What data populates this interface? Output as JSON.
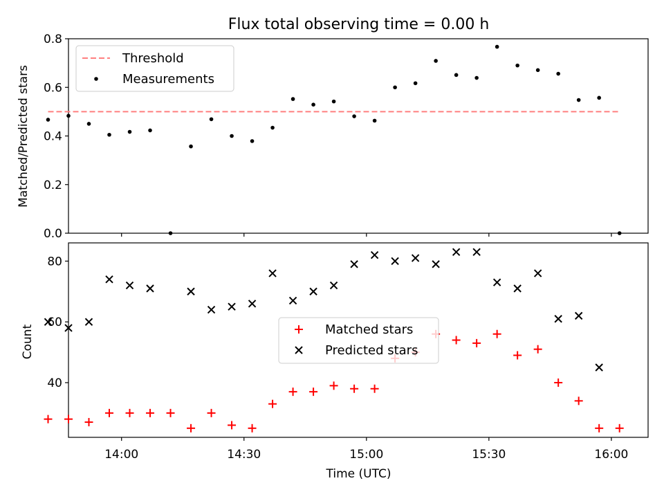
{
  "title": "Flux total observing time = 0.00 h",
  "chart_data": [
    {
      "type": "scatter",
      "ylabel": "Matched/Predicted stars",
      "xlabel": "",
      "ylim": [
        0,
        0.8
      ],
      "xlim": [
        "13:47",
        "16:09"
      ],
      "yticks": [
        "0.0",
        "0.2",
        "0.4",
        "0.6",
        "0.8"
      ],
      "grid": false,
      "legend_position": "upper-left",
      "threshold": {
        "name": "Threshold",
        "value": 0.5,
        "x_start": "13:42",
        "x_end": "16:02",
        "color": "#ff7f7f"
      },
      "series": [
        {
          "name": "Measurements",
          "color": "#000000",
          "x": [
            "13:42",
            "13:47",
            "13:52",
            "13:57",
            "14:02",
            "14:07",
            "14:12",
            "14:17",
            "14:22",
            "14:27",
            "14:32",
            "14:37",
            "14:42",
            "14:47",
            "14:52",
            "14:57",
            "15:02",
            "15:07",
            "15:12",
            "15:17",
            "15:22",
            "15:27",
            "15:32",
            "15:37",
            "15:42",
            "15:47",
            "15:52",
            "15:57",
            "16:02"
          ],
          "y": [
            0.467,
            0.483,
            0.45,
            0.405,
            0.417,
            0.423,
            0.0,
            0.357,
            0.469,
            0.4,
            0.379,
            0.434,
            0.552,
            0.529,
            0.542,
            0.481,
            0.463,
            0.6,
            0.617,
            0.709,
            0.651,
            0.639,
            0.767,
            0.69,
            0.671,
            0.656,
            0.548,
            0.557,
            0.0
          ]
        }
      ]
    },
    {
      "type": "scatter",
      "ylabel": "Count",
      "xlabel": "Time (UTC)",
      "ylim": [
        22,
        86
      ],
      "xlim": [
        "13:47",
        "16:09"
      ],
      "yticks": [
        "40",
        "60",
        "80"
      ],
      "xticks": [
        "14:00",
        "14:30",
        "15:00",
        "15:30",
        "16:00"
      ],
      "grid": false,
      "legend_position": "center",
      "series": [
        {
          "name": "Matched stars",
          "marker": "+",
          "color": "#ff0000",
          "x": [
            "13:42",
            "13:47",
            "13:52",
            "13:57",
            "14:02",
            "14:07",
            "14:12",
            "14:17",
            "14:22",
            "14:27",
            "14:32",
            "14:37",
            "14:42",
            "14:47",
            "14:52",
            "14:57",
            "15:02",
            "15:07",
            "15:12",
            "15:17",
            "15:22",
            "15:27",
            "15:32",
            "15:37",
            "15:42",
            "15:47",
            "15:52",
            "15:57",
            "16:02"
          ],
          "y": [
            28,
            28,
            27,
            30,
            30,
            30,
            30,
            25,
            30,
            26,
            25,
            33,
            37,
            37,
            39,
            38,
            38,
            48,
            50,
            56,
            54,
            53,
            56,
            49,
            51,
            40,
            34,
            25,
            25
          ]
        },
        {
          "name": "Predicted stars",
          "marker": "x",
          "color": "#000000",
          "x": [
            "13:42",
            "13:47",
            "13:52",
            "13:57",
            "14:02",
            "14:07",
            "14:17",
            "14:22",
            "14:27",
            "14:32",
            "14:37",
            "14:42",
            "14:47",
            "14:52",
            "14:57",
            "15:02",
            "15:07",
            "15:12",
            "15:17",
            "15:22",
            "15:27",
            "15:32",
            "15:37",
            "15:42",
            "15:47",
            "15:52",
            "15:57"
          ],
          "y": [
            60,
            58,
            60,
            74,
            72,
            71,
            70,
            64,
            65,
            66,
            76,
            67,
            70,
            72,
            79,
            82,
            80,
            81,
            79,
            83,
            83,
            73,
            71,
            76,
            61,
            62,
            45
          ]
        }
      ]
    }
  ]
}
